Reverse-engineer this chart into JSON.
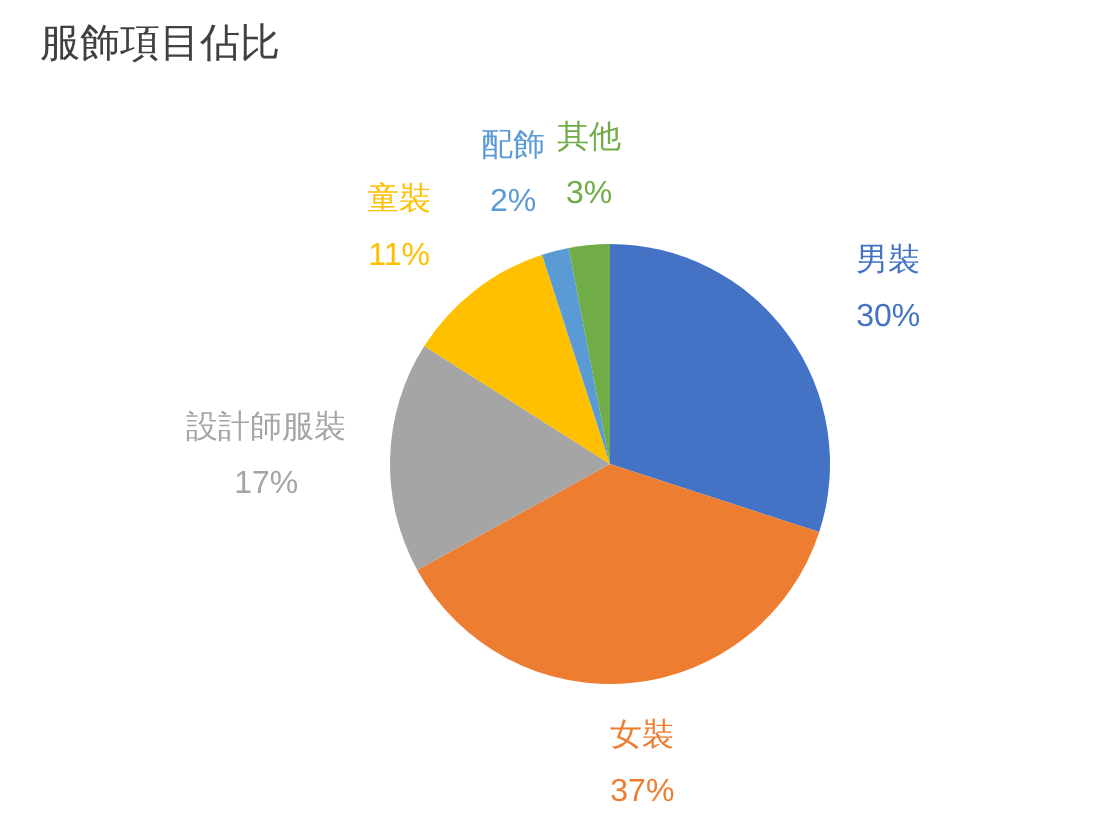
{
  "chart_data": {
    "type": "pie",
    "title": "服飾項目佔比",
    "categories": [
      "男裝",
      "女裝",
      "設計師服裝",
      "童裝",
      "配飾",
      "其他"
    ],
    "values": [
      30,
      37,
      17,
      11,
      2,
      3
    ],
    "colors": [
      "#4472c4",
      "#ed7d31",
      "#a5a5a5",
      "#ffc000",
      "#5b9bd5",
      "#70ad47"
    ],
    "value_labels": [
      "30%",
      "37%",
      "17%",
      "11%",
      "2%",
      "3%"
    ]
  }
}
